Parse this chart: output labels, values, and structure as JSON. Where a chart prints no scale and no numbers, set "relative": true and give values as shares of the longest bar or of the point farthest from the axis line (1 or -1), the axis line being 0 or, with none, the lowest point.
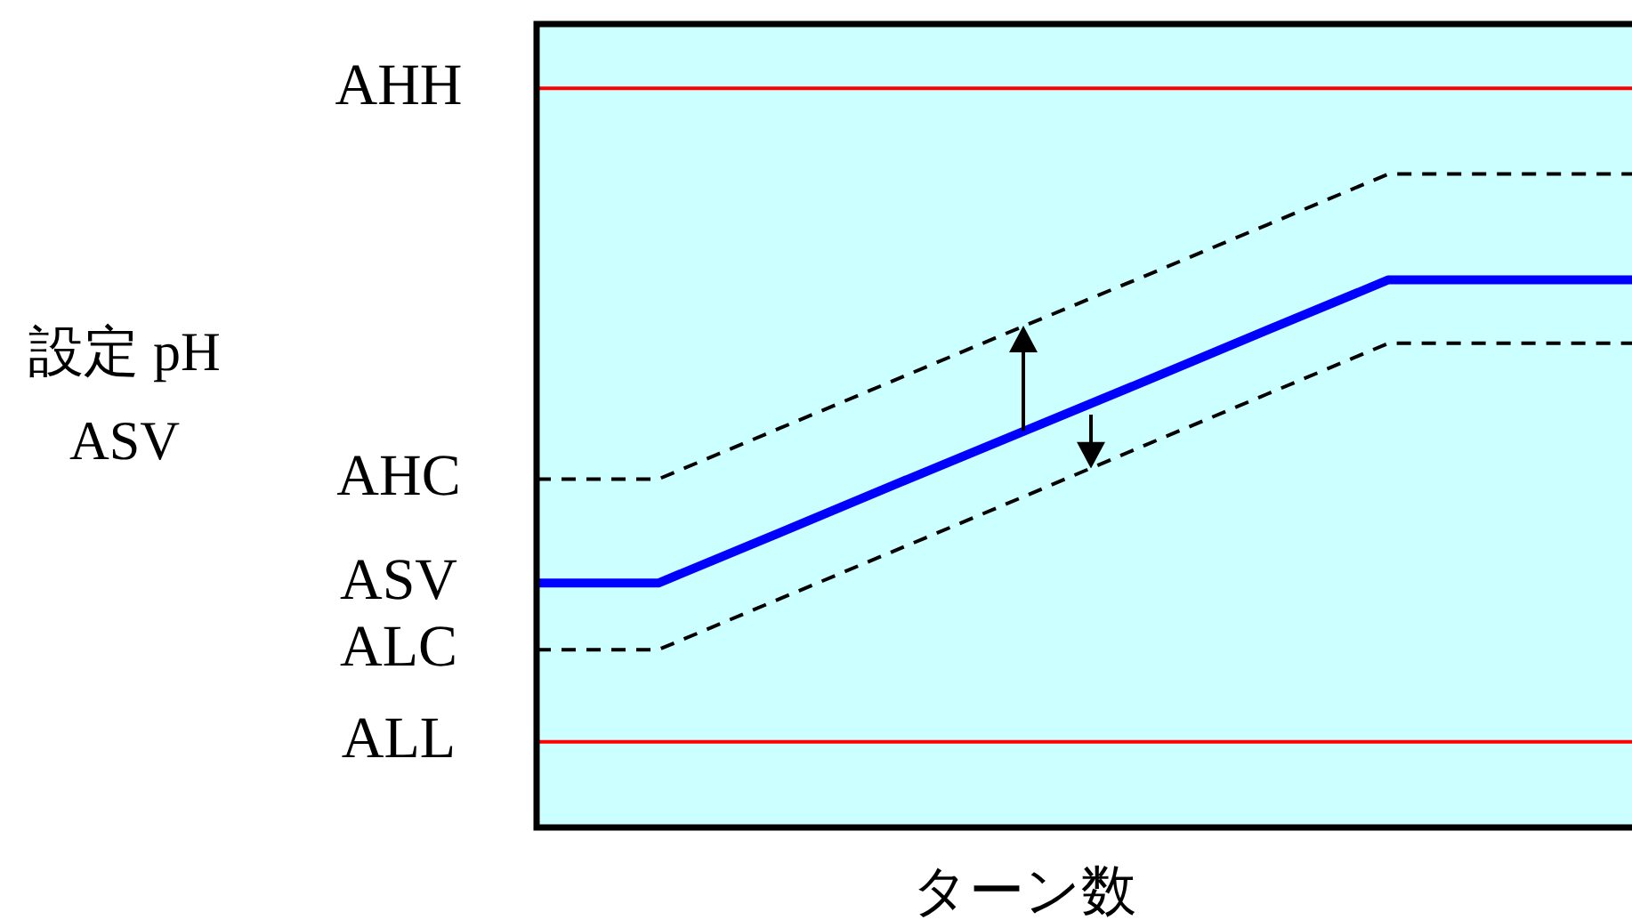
{
  "chart_data": {
    "type": "line",
    "xlabel": "ターン数",
    "annotations": [
      "設定 pH\nASV"
    ],
    "relative": true,
    "categories": [
      null,
      null,
      null,
      null,
      null,
      null,
      null,
      null,
      null,
      null
    ],
    "series": [
      {
        "name": "AHC",
        "color": "#000000",
        "line_style": "dashed",
        "values": [
          0.533,
          0.533,
          0.611,
          0.689,
          0.767,
          0.844,
          0.922,
          1.0,
          1.0,
          1.0
        ]
      },
      {
        "name": "ASV",
        "color": "#0000ff",
        "line_style": "solid",
        "values": [
          0.374,
          0.374,
          0.451,
          0.529,
          0.606,
          0.683,
          0.761,
          0.838,
          0.838,
          0.838
        ]
      },
      {
        "name": "ALC",
        "color": "#000000",
        "line_style": "dashed",
        "values": [
          0.272,
          0.272,
          0.35,
          0.428,
          0.506,
          0.585,
          0.663,
          0.741,
          0.741,
          0.741
        ]
      }
    ],
    "ref_lines": [
      {
        "axis": "y",
        "value": 1.131,
        "label": "AHH",
        "color": "#ff0000"
      },
      {
        "axis": "y",
        "value": 0.131,
        "label": "ALL",
        "color": "#ff0000"
      }
    ]
  }
}
